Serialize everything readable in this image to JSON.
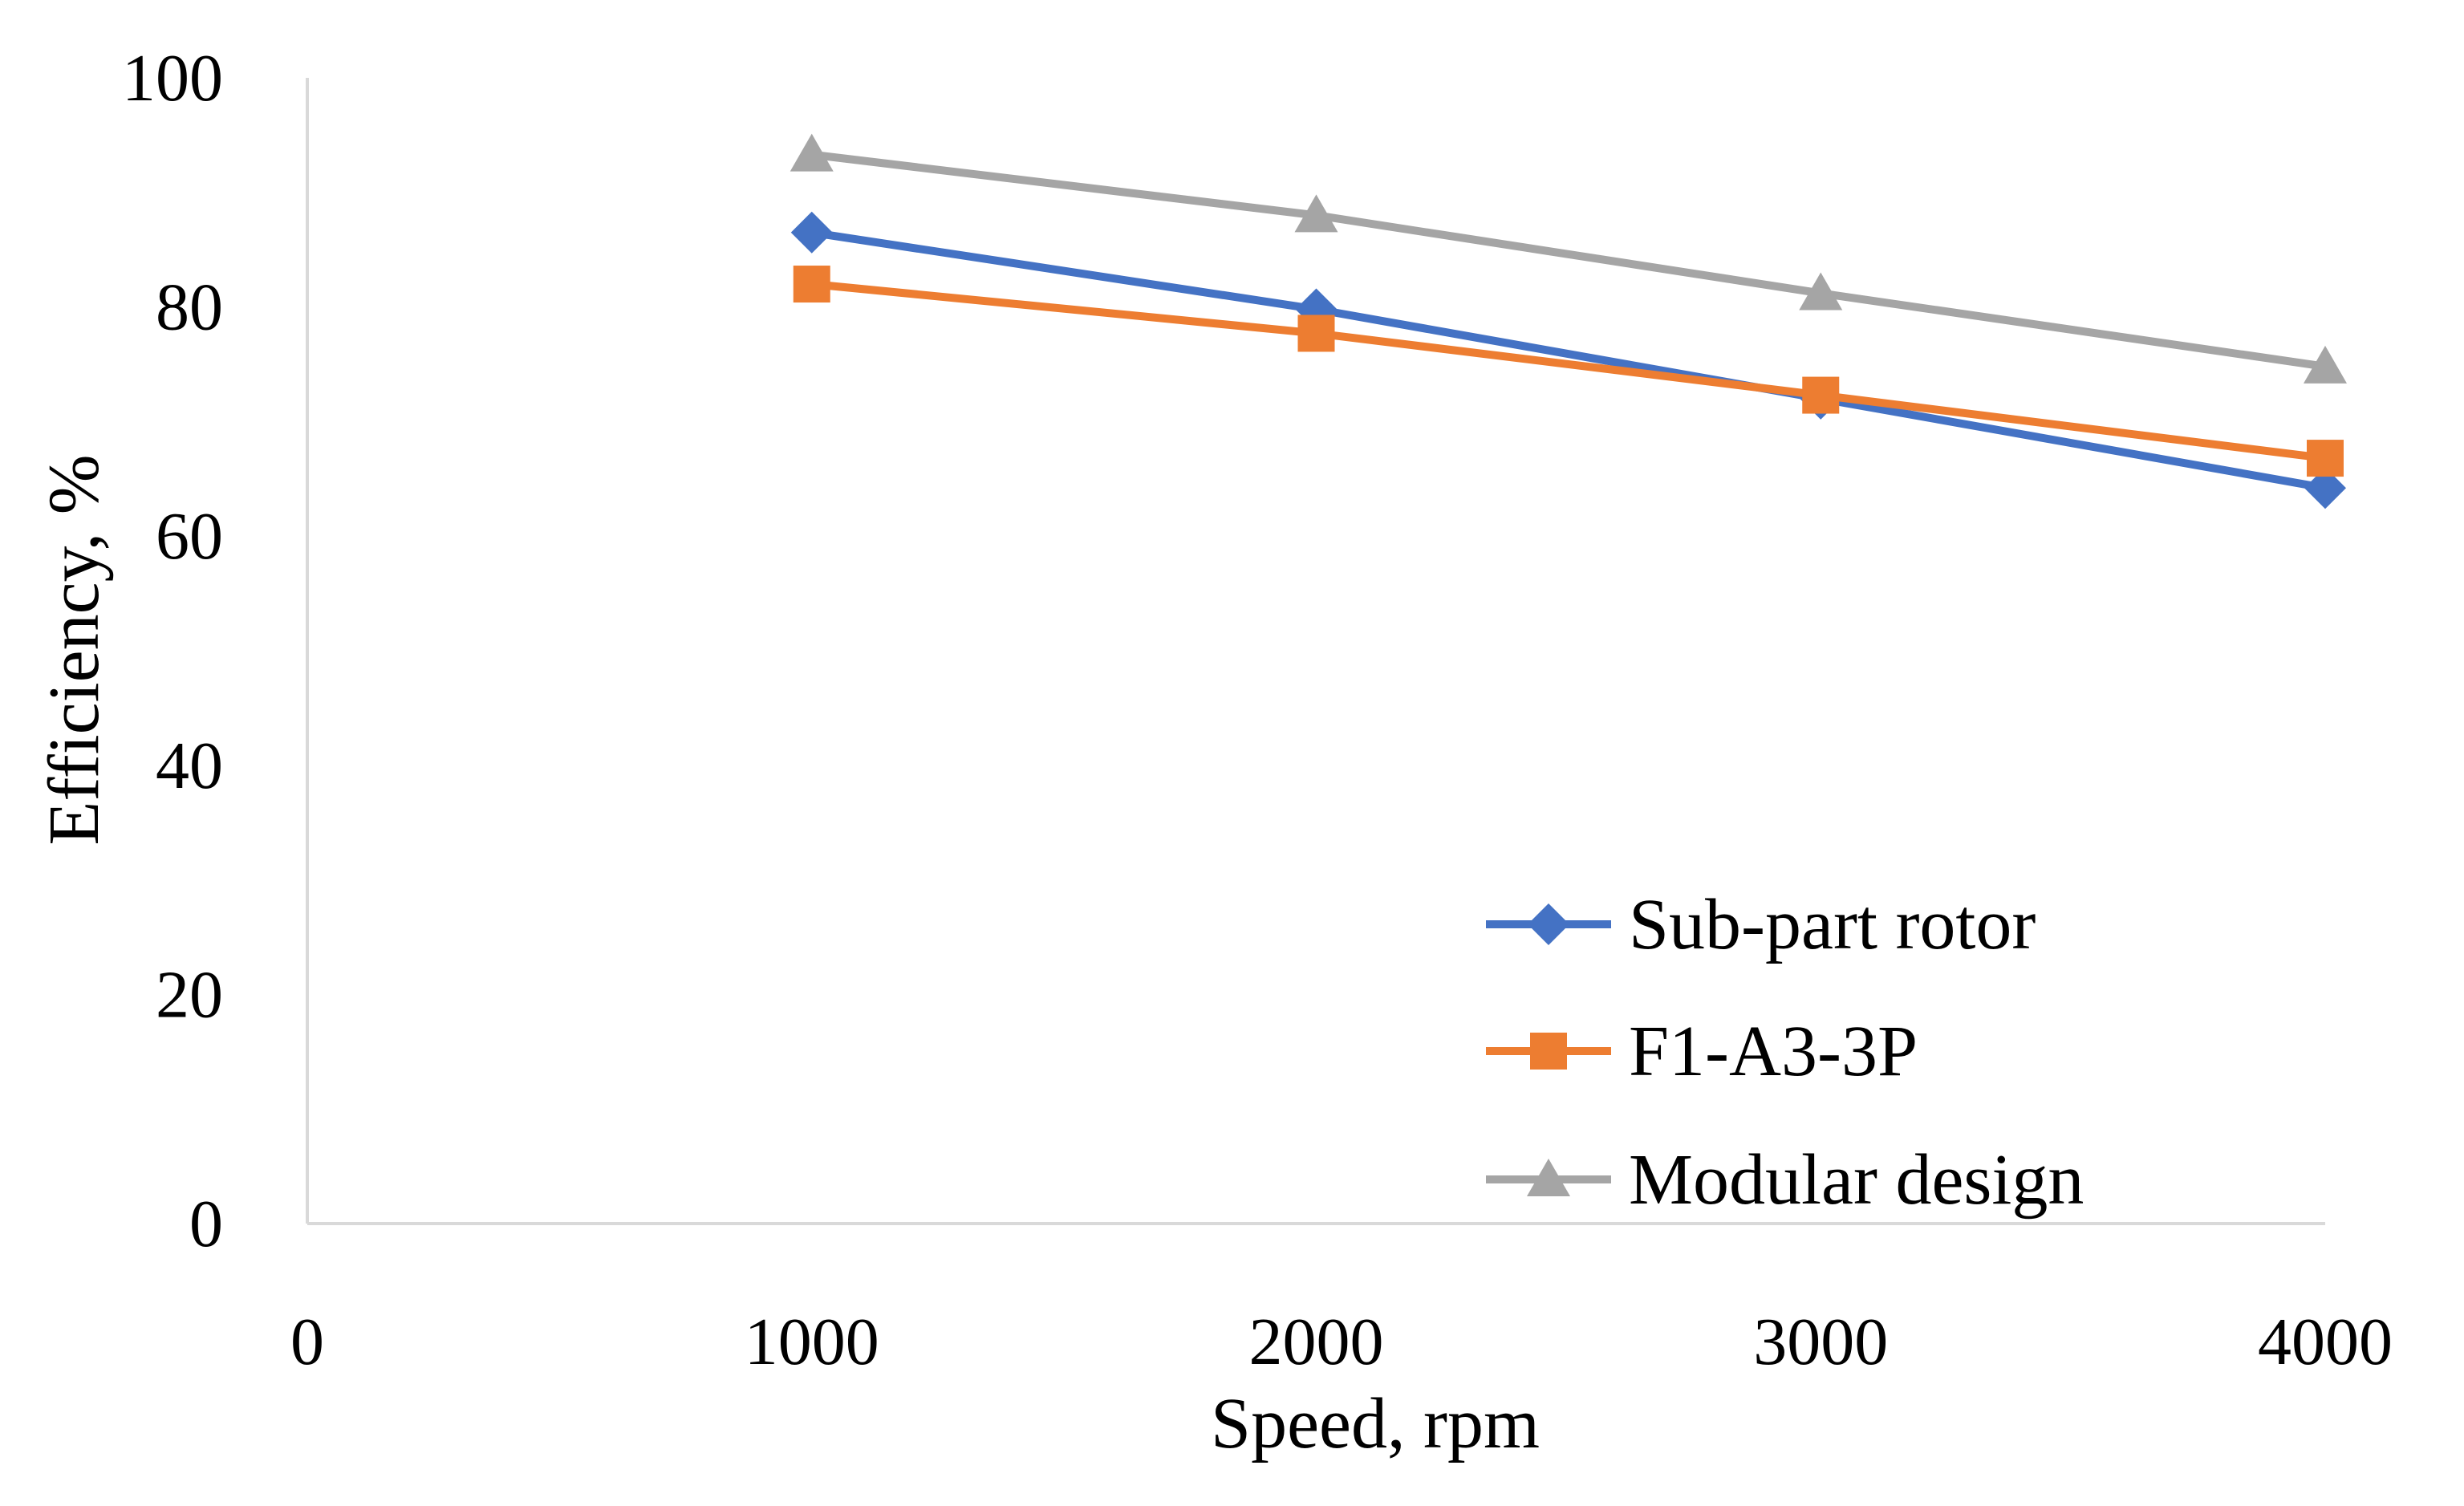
{
  "chart_data": {
    "type": "line",
    "title": "",
    "xlabel": "Speed, rpm",
    "ylabel": "Efficiency, %",
    "xlim": [
      0,
      4000
    ],
    "ylim": [
      0,
      100
    ],
    "xticks": [
      0,
      1000,
      2000,
      3000,
      4000
    ],
    "yticks": [
      0,
      20,
      40,
      60,
      80,
      100
    ],
    "xtick_labels": [
      "0",
      "1000",
      "2000",
      "3000",
      "4000"
    ],
    "ytick_labels": [
      "0",
      "20",
      "40",
      "60",
      "80",
      "100"
    ],
    "grid": false,
    "legend_position": "bottom-right",
    "x": [
      1000,
      2000,
      3000,
      4000
    ],
    "series": [
      {
        "name": "Sub-part rotor",
        "marker": "diamond",
        "color": "#4472C4",
        "values": [
          86.5,
          79.8,
          72.0,
          64.2
        ]
      },
      {
        "name": "F1-A3-3P",
        "marker": "square",
        "color": "#ED7D31",
        "values": [
          82.0,
          77.7,
          72.3,
          66.8
        ]
      },
      {
        "name": "Modular design",
        "marker": "triangle",
        "color": "#A5A5A5",
        "values": [
          93.3,
          88.0,
          81.2,
          74.8
        ]
      }
    ]
  }
}
